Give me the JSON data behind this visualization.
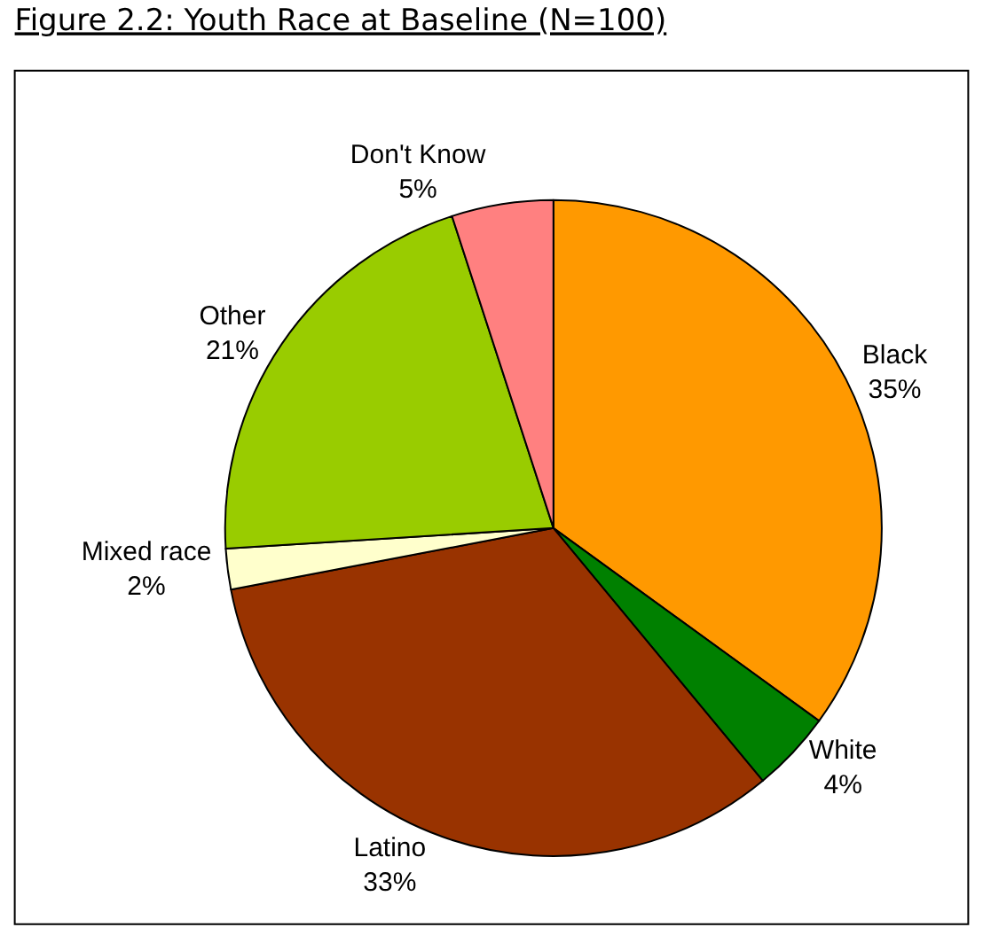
{
  "chart_data": {
    "type": "pie",
    "title": "Figure 2.2: Youth Race at Baseline (N=100)",
    "categories": [
      "Black",
      "White",
      "Latino",
      "Mixed race",
      "Other",
      "Don't Know"
    ],
    "values": [
      35,
      4,
      33,
      2,
      21,
      5
    ],
    "value_labels": [
      "35%",
      "4%",
      "33%",
      "2%",
      "21%",
      "5%"
    ],
    "colors": [
      "#ff9900",
      "#008000",
      "#993300",
      "#ffffcc",
      "#99cc00",
      "#ff8080"
    ],
    "legend": false
  }
}
